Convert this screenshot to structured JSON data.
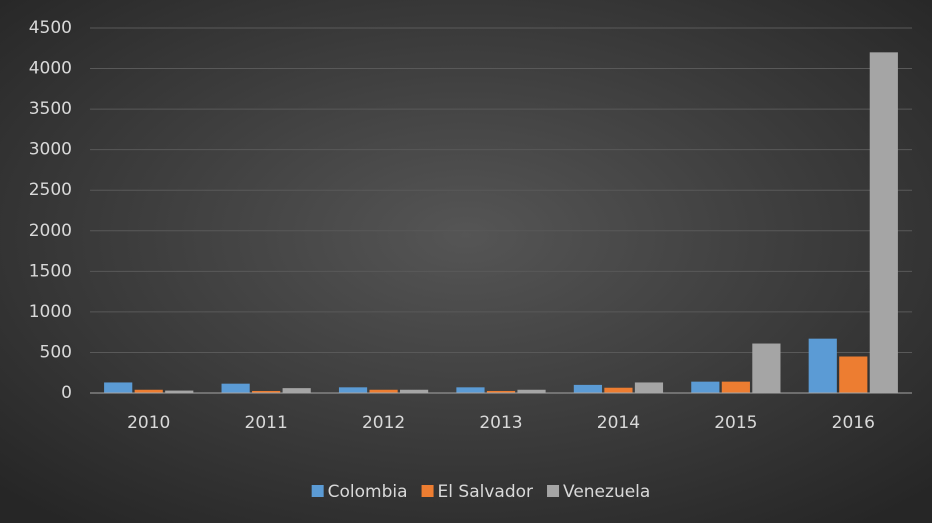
{
  "chart_data": {
    "type": "bar",
    "categories": [
      "2010",
      "2011",
      "2012",
      "2013",
      "2014",
      "2015",
      "2016"
    ],
    "series": [
      {
        "name": "Colombia",
        "color": "#5b9bd5",
        "values": [
          130,
          115,
          70,
          70,
          100,
          140,
          670
        ]
      },
      {
        "name": "El Salvador",
        "color": "#ed7d31",
        "values": [
          40,
          25,
          40,
          25,
          65,
          140,
          450
        ]
      },
      {
        "name": "Venezuela",
        "color": "#a5a5a5",
        "values": [
          30,
          60,
          40,
          40,
          130,
          610,
          4200
        ]
      }
    ],
    "ylim": [
      0,
      4500
    ],
    "yticks": [
      0,
      500,
      1000,
      1500,
      2000,
      2500,
      3000,
      3500,
      4000,
      4500
    ],
    "grid": true,
    "legend": "bottom"
  }
}
